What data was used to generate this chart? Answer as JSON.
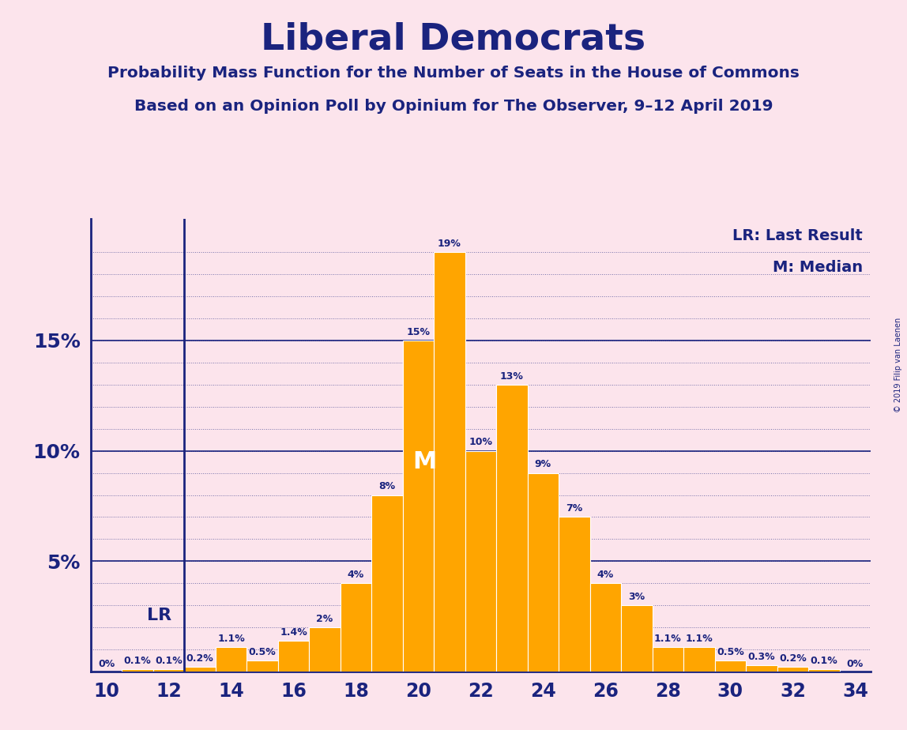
{
  "title": "Liberal Democrats",
  "subtitle1": "Probability Mass Function for the Number of Seats in the House of Commons",
  "subtitle2": "Based on an Opinion Poll by Opinium for The Observer, 9–12 April 2019",
  "background_color": "#fce4ec",
  "bar_color": "#FFA500",
  "bar_edge_color": "#FFFFFF",
  "text_color": "#1a237e",
  "seats": [
    10,
    11,
    12,
    13,
    14,
    15,
    16,
    17,
    18,
    19,
    20,
    21,
    22,
    23,
    24,
    25,
    26,
    27,
    28,
    29,
    30,
    31,
    32,
    33,
    34
  ],
  "probs": [
    0.0,
    0.1,
    0.1,
    0.2,
    1.1,
    0.5,
    1.4,
    2.0,
    4.0,
    8.0,
    15.0,
    19.0,
    10.0,
    13.0,
    9.0,
    7.0,
    4.0,
    3.0,
    1.1,
    1.1,
    0.5,
    0.3,
    0.2,
    0.1,
    0.0
  ],
  "lr_seat": 12,
  "median_seat": 21,
  "xlim": [
    9.5,
    34.5
  ],
  "ylim": [
    0,
    20.5
  ],
  "copyright_text": "© 2019 Filip van Laenen",
  "legend_lr": "LR: Last Result",
  "legend_m": "M: Median",
  "grid_major_color": "#1a237e",
  "grid_minor_color": "#1a237e"
}
